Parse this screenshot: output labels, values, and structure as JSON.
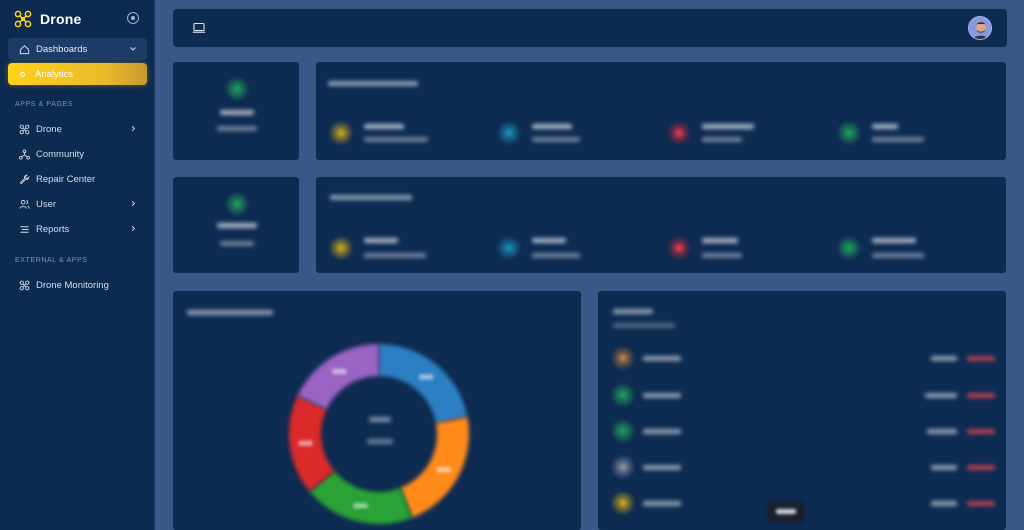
{
  "brand": {
    "title": "Drone",
    "logo_icon": "drone-icon",
    "accent": "#ffd21a"
  },
  "sidebar": {
    "dashboards_label": "Dashboards",
    "active_item_label": "Analytics",
    "section_apps_label": "APPS & PAGES",
    "items": [
      {
        "label": "Drone",
        "icon": "drone-icon",
        "has_chevron": true
      },
      {
        "label": "Community",
        "icon": "community-icon",
        "has_chevron": false
      },
      {
        "label": "Repair Center",
        "icon": "wrench-icon",
        "has_chevron": false
      },
      {
        "label": "User",
        "icon": "users-icon",
        "has_chevron": true
      },
      {
        "label": "Reports",
        "icon": "list-icon",
        "has_chevron": true
      }
    ],
    "section_external_label": "EXTERNAL & APPS",
    "external_items": [
      {
        "label": "Drone Monitoring",
        "icon": "drone-icon"
      }
    ]
  },
  "topbar": {
    "left_icon": "laptop-icon",
    "avatar_icon": "user-avatar"
  },
  "colors": {
    "background": "#3a5887",
    "card": "#0e2b52",
    "sidebar": "#0d2a50",
    "donut_segments": [
      "#2c7fc3",
      "#ff8a1a",
      "#2aa236",
      "#dc2a2a",
      "#9b64c4"
    ]
  },
  "chart_data": {
    "type": "pie",
    "values": [
      22,
      22,
      20,
      18,
      18
    ]
  }
}
